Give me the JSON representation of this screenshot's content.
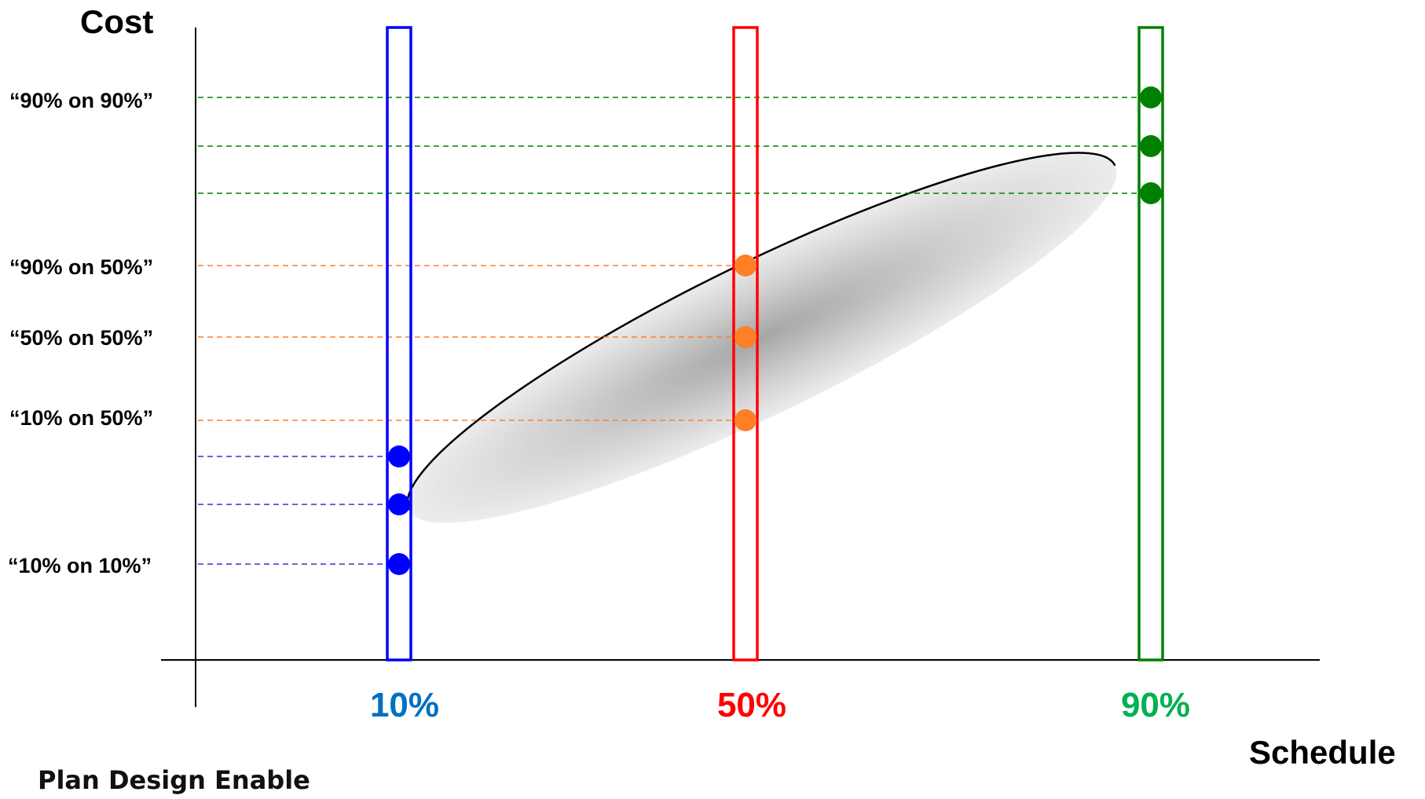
{
  "chart_data": {
    "type": "scatter",
    "xlabel": "Schedule",
    "ylabel": "Cost",
    "columns": [
      {
        "label": "10%",
        "color": "#0000ff",
        "label_color": "#0070c0",
        "points": 3,
        "line_color": "#3333cc"
      },
      {
        "label": "50%",
        "color": "#ff0000",
        "label_color": "#ff0000",
        "points": 3,
        "line_color": "#ff7f27"
      },
      {
        "label": "90%",
        "color": "#008000",
        "label_color": "#00b050",
        "points": 3,
        "line_color": "#008000"
      }
    ],
    "point_colors": [
      "#0000ff",
      "#ff7f27",
      "#008000"
    ],
    "annotations": [
      "“90% on 90%”",
      "“90% on 50%”",
      "“50% on 50%”",
      "“10% on 50%”",
      "“10% on 10%”"
    ],
    "distribution": "ellipse-gradient"
  },
  "footer": {
    "text": "Plan Design Enable"
  }
}
